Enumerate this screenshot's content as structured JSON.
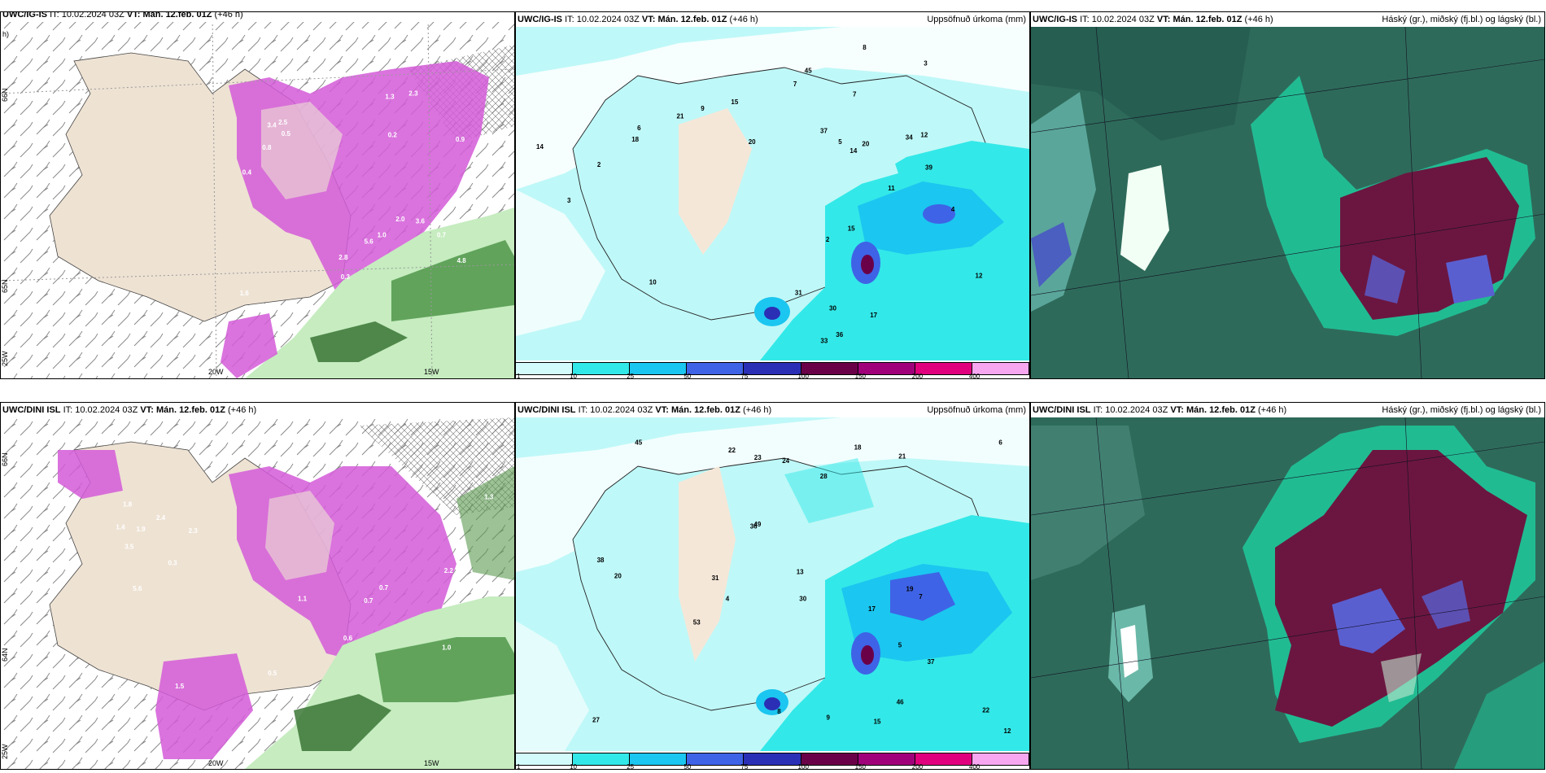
{
  "panels": [
    {
      "id": "p1",
      "model": "UWC/IG-IS",
      "it_label": "IT:",
      "it": "10.02.2024 03Z",
      "vt_label": "VT:",
      "vt": "Mán. 12.feb. 01Z",
      "lead": "(+46 h)",
      "right": "",
      "corner_extra": "h)"
    },
    {
      "id": "p2",
      "model": "UWC/IG-IS",
      "it_label": "IT:",
      "it": "10.02.2024 03Z",
      "vt_label": "VT:",
      "vt": "Mán. 12.feb. 01Z",
      "lead": "(+46 h)",
      "right": "Uppsöfnuð úrkoma (mm)"
    },
    {
      "id": "p3",
      "model": "UWC/IG-IS",
      "it_label": "IT:",
      "it": "10.02.2024 03Z",
      "vt_label": "VT:",
      "vt": "Mán. 12.feb. 01Z",
      "lead": "(+46 h)",
      "right": "Háský (gr.), miðský (fj.bl.) og lágský (bl.)"
    },
    {
      "id": "p4",
      "model": "UWC/DINI ISL",
      "it_label": "IT:",
      "it": "10.02.2024 03Z",
      "vt_label": "VT:",
      "vt": "Mán. 12.feb. 01Z",
      "lead": "(+46 h)",
      "right": ""
    },
    {
      "id": "p5",
      "model": "UWC/DINI ISL",
      "it_label": "IT:",
      "it": "10.02.2024 03Z",
      "vt_label": "VT:",
      "vt": "Mán. 12.feb. 01Z",
      "lead": "(+46 h)",
      "right": "Uppsöfnuð úrkoma (mm)"
    },
    {
      "id": "p6",
      "model": "UWC/DINI ISL",
      "it_label": "IT:",
      "it": "10.02.2024 03Z",
      "vt_label": "VT:",
      "vt": "Mán. 12.feb. 01Z",
      "lead": "(+46 h)",
      "right": "Háský (gr.), miðský (fj.bl.) og lágský (bl.)"
    }
  ],
  "axis_labels": {
    "lon_20w": "20W",
    "lon_15w": "15W",
    "lat_66n": "66N",
    "lat_65n": "65N",
    "lat_64n": "64N",
    "lat_25w": "25W"
  },
  "colorbar": {
    "ticks": [
      "1",
      "10",
      "25",
      "50",
      "75",
      "100",
      "150",
      "200",
      "400"
    ],
    "colors": [
      "#d4fbfb",
      "#33e8e8",
      "#1bc6f0",
      "#3f63e6",
      "#2b2fb5",
      "#6a0048",
      "#a0007a",
      "#e0007e",
      "#f7a6f0"
    ]
  },
  "precip_labels_top": [
    "3",
    "5",
    "7",
    "2",
    "14",
    "4",
    "12",
    "10",
    "11",
    "9",
    "8",
    "37",
    "18",
    "20",
    "34",
    "39",
    "45",
    "30",
    "31",
    "15",
    "20",
    "17",
    "21",
    "33",
    "36",
    "12",
    "15",
    "14",
    "7",
    "6",
    "2",
    "3"
  ],
  "precip_labels_bottom": [
    "8",
    "9",
    "5",
    "6",
    "18",
    "27",
    "13",
    "22",
    "23",
    "30",
    "46",
    "38",
    "53",
    "49",
    "36",
    "45",
    "31",
    "21",
    "24",
    "37",
    "22",
    "28",
    "20",
    "17",
    "19",
    "15",
    "12",
    "4",
    "7"
  ],
  "snow_labels_top": [
    "1.3",
    "0.9",
    "2.5",
    "1.0",
    "0.3",
    "1.6",
    "2.0",
    "0.5",
    "1.2",
    "3.4",
    "5.6",
    "0.4",
    "2.8",
    "3.6",
    "4.8",
    "0.7",
    "0.8",
    "2.3",
    "0.2"
  ],
  "snow_labels_bottom": [
    "1.4",
    "1.1",
    "2.2",
    "0.7",
    "1.3",
    "0.5",
    "2.4",
    "3.5",
    "5.6",
    "1.0",
    "0.3",
    "1.5",
    "1.9",
    "0.6",
    "1.8",
    "2.3",
    "0.7",
    "0.5"
  ],
  "colors": {
    "land": "#eee2d3",
    "snow": "#d35ad8",
    "rain": "#3f8b3a",
    "sea": "#ffffff",
    "cloudbase": "#2e6a5a",
    "cloudhigh": "#6b1640"
  }
}
